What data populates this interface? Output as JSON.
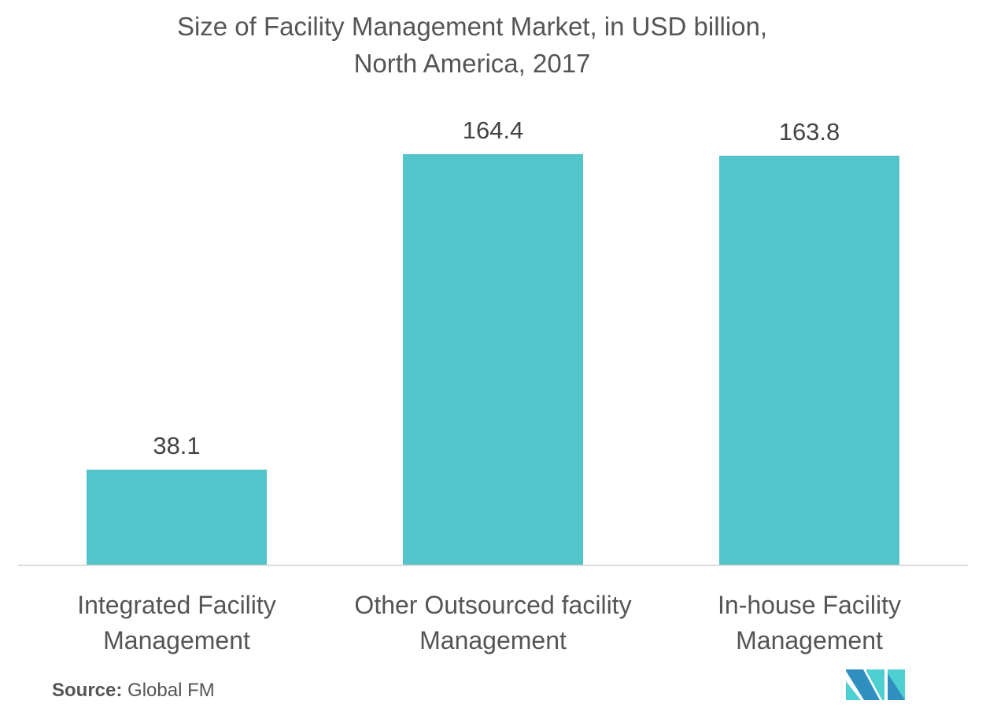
{
  "chart_data": {
    "type": "bar",
    "title": "Size of Facility Management Market, in USD billion,",
    "subtitle": "North America, 2017",
    "categories": [
      [
        "Integrated Facility",
        "Management"
      ],
      [
        "Other Outsourced facility",
        "Management"
      ],
      [
        "In-house Facility",
        "Management"
      ]
    ],
    "values": [
      38.1,
      164.4,
      163.8
    ],
    "data_labels": [
      "38.1",
      "164.4",
      "163.8"
    ],
    "xlabel": "",
    "ylabel": "",
    "ylim": [
      0,
      164.4
    ],
    "grid": false,
    "bar_color": "#52c4ca"
  },
  "source": {
    "label": "Source:",
    "value": "Global FM"
  },
  "logo": {
    "colors": [
      "#2f8fc1",
      "#4ecfd1"
    ]
  }
}
